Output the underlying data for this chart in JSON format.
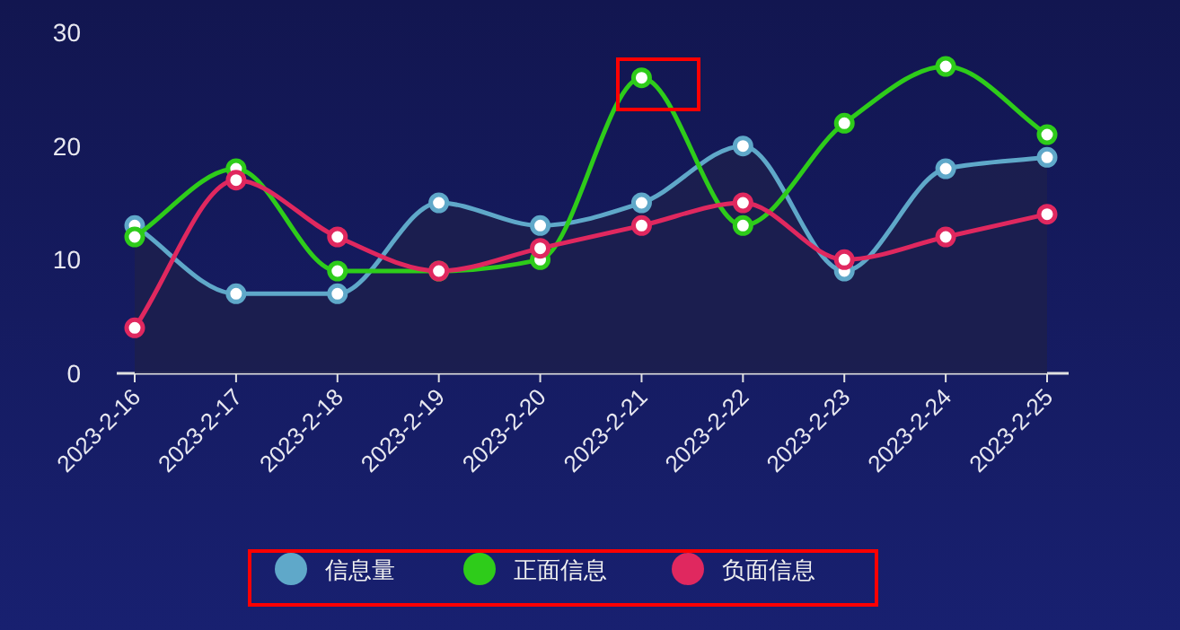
{
  "chart_data": {
    "type": "line",
    "categories": [
      "2023-2-16",
      "2023-2-17",
      "2023-2-18",
      "2023-2-19",
      "2023-2-20",
      "2023-2-21",
      "2023-2-22",
      "2023-2-23",
      "2023-2-24",
      "2023-2-25"
    ],
    "ylim": [
      0,
      30
    ],
    "yticks": [
      0,
      10,
      20,
      30
    ],
    "grid": false,
    "legend": "bottom",
    "marker": "circle",
    "line_style": "solid",
    "series": [
      {
        "name": "信息量",
        "type": "area",
        "color": "#5fa8c9",
        "values": [
          13,
          7,
          7,
          15,
          13,
          15,
          20,
          9,
          18,
          19
        ]
      },
      {
        "name": "正面信息",
        "color": "#2ecc1a",
        "values": [
          12,
          18,
          9,
          9,
          10,
          26,
          13,
          22,
          27,
          21
        ]
      },
      {
        "name": "负面信息",
        "color": "#e0285f",
        "values": [
          4,
          17,
          12,
          9,
          11,
          13,
          15,
          10,
          12,
          14
        ]
      }
    ]
  }
}
